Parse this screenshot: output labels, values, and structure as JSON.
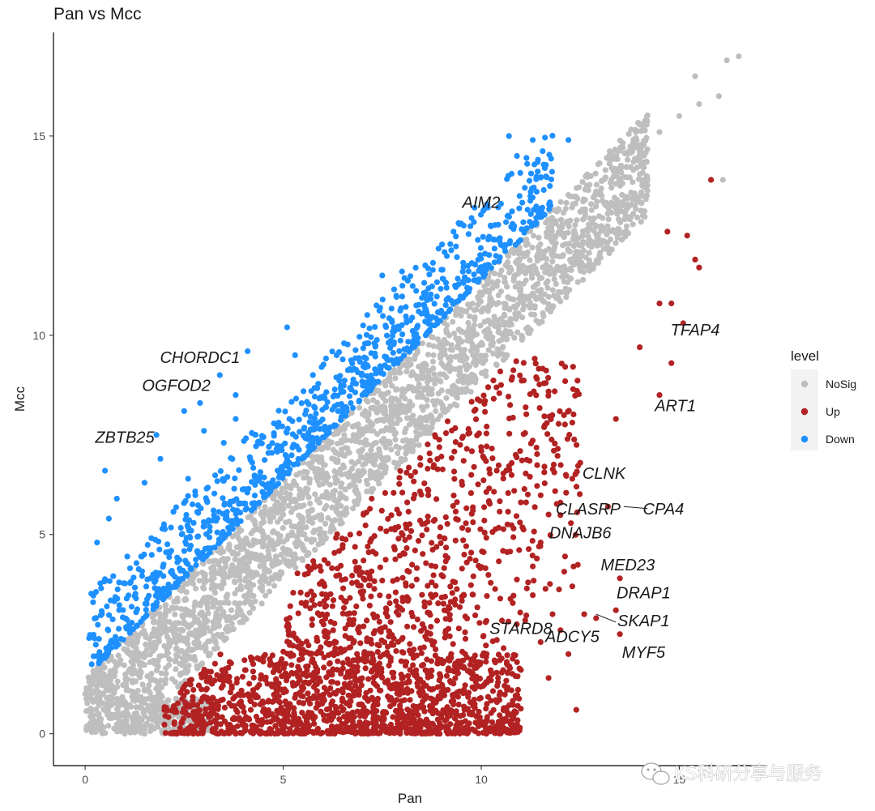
{
  "chart_data": {
    "type": "scatter",
    "title": "Pan vs Mcc",
    "xlabel": "Pan",
    "ylabel": "Mcc",
    "xlim": [
      -0.8,
      17.2
    ],
    "ylim": [
      -0.8,
      17.6
    ],
    "x_ticks": [
      0,
      5,
      10,
      15
    ],
    "y_ticks": [
      0,
      5,
      10,
      15
    ],
    "grid": false,
    "legend": {
      "title": "level",
      "position": "right",
      "entries": [
        {
          "label": "NoSig",
          "color": "#bebebe"
        },
        {
          "label": "Up",
          "color": "#b22222"
        },
        {
          "label": "Down",
          "color": "#1e90ff"
        }
      ]
    },
    "series": [
      {
        "name": "NoSig",
        "color": "#bebebe",
        "points": [
          [
            0.0,
            1.0
          ],
          [
            0.1,
            1.3
          ],
          [
            0.2,
            0.8
          ],
          [
            0.3,
            1.6
          ],
          [
            0.5,
            1.2
          ],
          [
            0.7,
            0.4
          ],
          [
            0.9,
            0.1
          ],
          [
            1.0,
            0.0
          ],
          [
            1.5,
            0.0
          ],
          [
            2.0,
            0.0
          ],
          [
            2.0,
            2.2
          ],
          [
            2.5,
            2.8
          ],
          [
            3.0,
            3.4
          ],
          [
            3.5,
            3.9
          ],
          [
            4.0,
            4.4
          ],
          [
            4.5,
            5.0
          ],
          [
            5.0,
            5.5
          ],
          [
            5.5,
            6.0
          ],
          [
            6.0,
            6.5
          ],
          [
            6.5,
            7.0
          ],
          [
            7.0,
            7.6
          ],
          [
            7.5,
            8.1
          ],
          [
            8.0,
            8.6
          ],
          [
            8.5,
            9.1
          ],
          [
            9.0,
            9.6
          ],
          [
            9.5,
            10.1
          ],
          [
            10.0,
            10.6
          ],
          [
            10.5,
            11.1
          ],
          [
            11.0,
            11.6
          ],
          [
            11.5,
            12.1
          ],
          [
            12.0,
            12.6
          ],
          [
            12.5,
            13.1
          ],
          [
            13.0,
            13.6
          ],
          [
            13.5,
            14.1
          ],
          [
            14.0,
            14.6
          ],
          [
            14.5,
            15.1
          ],
          [
            15.0,
            15.5
          ],
          [
            15.5,
            15.8
          ],
          [
            15.4,
            16.5
          ],
          [
            16.0,
            16.0
          ],
          [
            16.2,
            16.9
          ],
          [
            16.5,
            17.0
          ],
          [
            15.8,
            13.9
          ],
          [
            16.1,
            13.9
          ]
        ],
        "bands": [
          {
            "name": "core",
            "x_from": 0.0,
            "x_to": 14.2,
            "lower_offset": -1.2,
            "upper_offset": 1.4,
            "count": 2600
          },
          {
            "name": "low",
            "x_from": 0.8,
            "x_to": 3.2,
            "lower_y": 0.0,
            "upper_y": 0.9,
            "count": 260
          }
        ]
      },
      {
        "name": "Up",
        "color": "#b22222",
        "points": [
          [
            15.8,
            13.9
          ],
          [
            14.7,
            12.6
          ],
          [
            15.2,
            12.5
          ],
          [
            15.4,
            11.9
          ],
          [
            15.5,
            11.7
          ],
          [
            14.8,
            10.8
          ],
          [
            14.5,
            10.8
          ],
          [
            15.1,
            10.3
          ],
          [
            14.8,
            9.3
          ],
          [
            14.0,
            9.7
          ],
          [
            14.5,
            8.5
          ],
          [
            13.4,
            7.9
          ],
          [
            12.5,
            6.8
          ],
          [
            12.3,
            6.4
          ],
          [
            12.0,
            5.8
          ],
          [
            13.2,
            5.7
          ],
          [
            11.7,
            5.5
          ],
          [
            11.5,
            4.8
          ],
          [
            11.3,
            4.2
          ],
          [
            13.5,
            3.9
          ],
          [
            12.3,
            3.7
          ],
          [
            13.4,
            3.1
          ],
          [
            12.9,
            2.9
          ],
          [
            12.6,
            3.0
          ],
          [
            13.5,
            2.5
          ],
          [
            12.2,
            2.0
          ],
          [
            11.5,
            2.3
          ],
          [
            12.4,
            0.6
          ],
          [
            11.7,
            1.4
          ],
          [
            11.8,
            3.0
          ],
          [
            12.0,
            2.6
          ]
        ],
        "regions": [
          {
            "name": "dense-bottom",
            "x_from": 2.0,
            "x_to": 11.0,
            "y_from": 0.0,
            "y_to": 2.0,
            "count": 1500
          },
          {
            "name": "upper-wedge",
            "x_from": 5.0,
            "x_to": 12.5,
            "y_from": 2.0,
            "y_to": 9.5,
            "count": 1300
          }
        ]
      },
      {
        "name": "Down",
        "color": "#1e90ff",
        "points": [
          [
            10.7,
            15.0
          ],
          [
            11.3,
            14.9
          ],
          [
            12.2,
            14.9
          ],
          [
            10.9,
            14.5
          ],
          [
            10.5,
            13.3
          ],
          [
            11.1,
            13.7
          ],
          [
            11.4,
            13.6
          ],
          [
            9.3,
            12.6
          ],
          [
            8.0,
            11.6
          ],
          [
            7.5,
            11.5
          ],
          [
            5.1,
            10.2
          ],
          [
            5.3,
            9.5
          ],
          [
            4.1,
            9.6
          ],
          [
            3.8,
            8.5
          ],
          [
            3.4,
            9.0
          ],
          [
            2.5,
            8.1
          ],
          [
            2.9,
            8.3
          ],
          [
            1.8,
            7.5
          ],
          [
            1.9,
            6.9
          ],
          [
            0.5,
            6.6
          ],
          [
            0.8,
            5.9
          ],
          [
            0.6,
            5.4
          ],
          [
            0.3,
            4.8
          ],
          [
            0.2,
            3.3
          ],
          [
            0.1,
            2.4
          ],
          [
            2.6,
            6.4
          ],
          [
            1.5,
            6.3
          ],
          [
            3.0,
            7.6
          ],
          [
            3.5,
            7.3
          ],
          [
            3.8,
            7.9
          ]
        ],
        "bands": [
          {
            "name": "upper-band",
            "x_from": 0.1,
            "x_to": 11.8,
            "lower_offset": 1.4,
            "upper_offset": 3.4,
            "count": 1000
          }
        ]
      }
    ],
    "annotations": [
      {
        "label": "AIM2",
        "x": 10.0,
        "y": 13.2
      },
      {
        "label": "TFAP4",
        "x": 15.4,
        "y": 10.0
      },
      {
        "label": "CHORDC1",
        "x": 2.9,
        "y": 9.3
      },
      {
        "label": "OGFOD2",
        "x": 2.3,
        "y": 8.6
      },
      {
        "label": "ART1",
        "x": 14.9,
        "y": 8.1
      },
      {
        "label": "ZBTB25",
        "x": 1.0,
        "y": 7.3
      },
      {
        "label": "CLNK",
        "x": 13.1,
        "y": 6.4
      },
      {
        "label": "CLASRP",
        "x": 12.7,
        "y": 5.5
      },
      {
        "label": "CPA4",
        "x": 14.6,
        "y": 5.5
      },
      {
        "label": "DNAJB6",
        "x": 12.5,
        "y": 4.9
      },
      {
        "label": "MED23",
        "x": 13.7,
        "y": 4.1
      },
      {
        "label": "DRAP1",
        "x": 14.1,
        "y": 3.4
      },
      {
        "label": "SKAP1",
        "x": 14.1,
        "y": 2.7
      },
      {
        "label": "STARD8",
        "x": 11.0,
        "y": 2.5
      },
      {
        "label": "ADCY5",
        "x": 12.3,
        "y": 2.3
      },
      {
        "label": "MYF5",
        "x": 14.1,
        "y": 1.9
      }
    ]
  },
  "watermark": {
    "text": "KS科研分享与服务",
    "icon": "wechat-icon"
  }
}
